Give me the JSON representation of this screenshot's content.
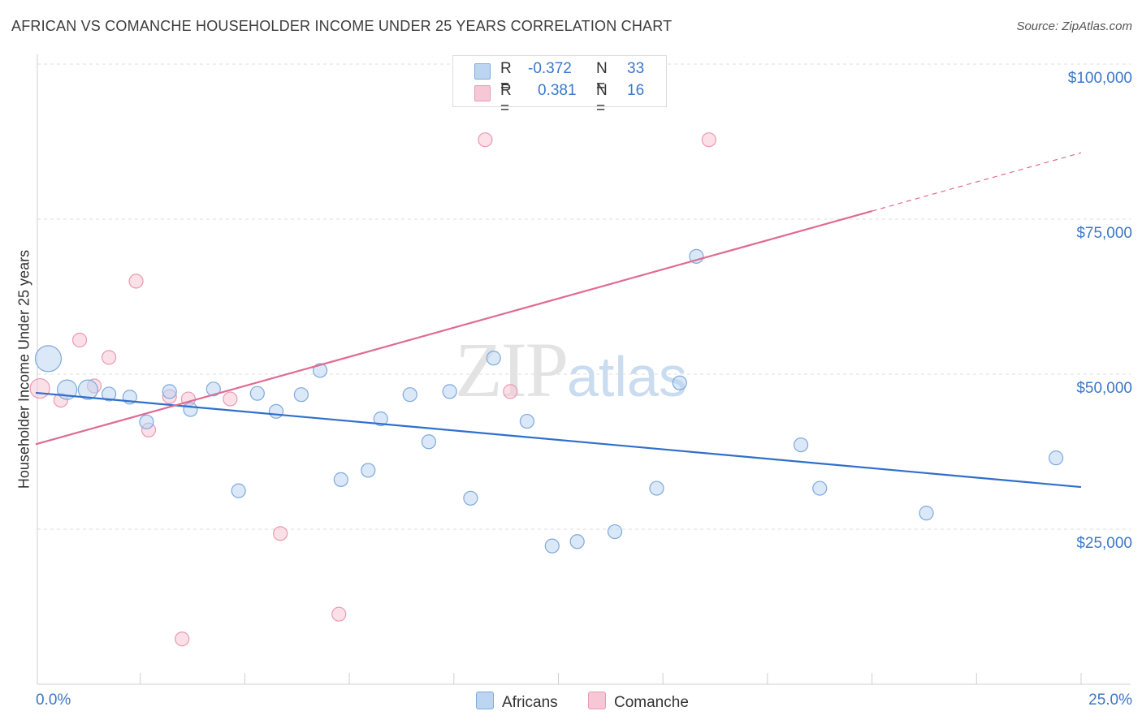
{
  "header": {
    "title": "AFRICAN VS COMANCHE HOUSEHOLDER INCOME UNDER 25 YEARS CORRELATION CHART",
    "source": "Source: ZipAtlas.com"
  },
  "watermark": {
    "zip": "ZIP",
    "atlas": "atlas"
  },
  "stats_box": {
    "africans": {
      "r_label": "R =",
      "r_value": "-0.372",
      "n_label": "N =",
      "n_value": "33"
    },
    "comanche": {
      "r_label": "R =",
      "r_value": "0.381",
      "n_label": "N =",
      "n_value": "16"
    }
  },
  "legend": {
    "africans": "Africans",
    "comanche": "Comanche"
  },
  "colors": {
    "africans_fill": "#bcd5f2",
    "africans_stroke": "#7fa9dc",
    "africans_line": "#2f6fcb",
    "comanche_fill": "#f7c7d6",
    "comanche_stroke": "#e99ab3",
    "comanche_line": "#e06a92",
    "tick_text": "#3b78c9",
    "grid": "#dddddd"
  },
  "chart_data": {
    "type": "scatter",
    "title": "AFRICAN VS COMANCHE HOUSEHOLDER INCOME UNDER 25 YEARS CORRELATION CHART",
    "xlabel": "",
    "ylabel": "Householder Income Under 25 years",
    "xlim": [
      0,
      25
    ],
    "ylim": [
      0,
      102000
    ],
    "x_tick_labels": [
      "0.0%",
      "25.0%"
    ],
    "y_ticks": [
      25000,
      50000,
      75000,
      100000
    ],
    "y_tick_labels": [
      "$25,000",
      "$50,000",
      "$75,000",
      "$100,000"
    ],
    "series": [
      {
        "name": "Africans",
        "r": -0.372,
        "n": 33,
        "trend": {
          "x0": 0,
          "y0": 47000,
          "x1": 25,
          "y1": 31800
        },
        "points": [
          {
            "x": 0.3,
            "y": 52500,
            "size": 3
          },
          {
            "x": 0.75,
            "y": 47500,
            "size": 2
          },
          {
            "x": 1.25,
            "y": 47500,
            "size": 2
          },
          {
            "x": 1.75,
            "y": 46800,
            "size": 1
          },
          {
            "x": 2.25,
            "y": 46300,
            "size": 1
          },
          {
            "x": 2.65,
            "y": 42300,
            "size": 1
          },
          {
            "x": 3.2,
            "y": 47200,
            "size": 1
          },
          {
            "x": 3.7,
            "y": 44300,
            "size": 1
          },
          {
            "x": 4.25,
            "y": 47600,
            "size": 1
          },
          {
            "x": 4.85,
            "y": 31200,
            "size": 1
          },
          {
            "x": 5.3,
            "y": 46900,
            "size": 1
          },
          {
            "x": 5.75,
            "y": 44000,
            "size": 1
          },
          {
            "x": 6.35,
            "y": 46700,
            "size": 1
          },
          {
            "x": 6.8,
            "y": 50600,
            "size": 1
          },
          {
            "x": 7.3,
            "y": 33000,
            "size": 1
          },
          {
            "x": 7.95,
            "y": 34500,
            "size": 1
          },
          {
            "x": 8.25,
            "y": 42800,
            "size": 1
          },
          {
            "x": 8.95,
            "y": 46700,
            "size": 1
          },
          {
            "x": 9.4,
            "y": 39100,
            "size": 1
          },
          {
            "x": 9.9,
            "y": 47200,
            "size": 1
          },
          {
            "x": 10.4,
            "y": 30000,
            "size": 1
          },
          {
            "x": 10.95,
            "y": 52600,
            "size": 1
          },
          {
            "x": 11.75,
            "y": 42400,
            "size": 1
          },
          {
            "x": 12.35,
            "y": 22300,
            "size": 1
          },
          {
            "x": 12.95,
            "y": 23000,
            "size": 1
          },
          {
            "x": 13.85,
            "y": 24600,
            "size": 1
          },
          {
            "x": 14.85,
            "y": 31600,
            "size": 1
          },
          {
            "x": 15.4,
            "y": 48600,
            "size": 1
          },
          {
            "x": 15.8,
            "y": 69000,
            "size": 1
          },
          {
            "x": 18.3,
            "y": 38600,
            "size": 1
          },
          {
            "x": 18.75,
            "y": 31600,
            "size": 1
          },
          {
            "x": 21.3,
            "y": 27600,
            "size": 1
          },
          {
            "x": 24.4,
            "y": 36500,
            "size": 1
          }
        ]
      },
      {
        "name": "Comanche",
        "r": 0.381,
        "n": 16,
        "trend": {
          "x0": 0,
          "y0": 38700,
          "x1": 20,
          "y1": 76300,
          "dashed_x1": 25,
          "dashed_y1": 85700
        },
        "points": [
          {
            "x": 0.1,
            "y": 47700,
            "size": 2
          },
          {
            "x": 0.6,
            "y": 45800,
            "size": 1
          },
          {
            "x": 1.05,
            "y": 55500,
            "size": 1
          },
          {
            "x": 1.4,
            "y": 48100,
            "size": 1
          },
          {
            "x": 1.75,
            "y": 52700,
            "size": 1
          },
          {
            "x": 2.4,
            "y": 65000,
            "size": 1
          },
          {
            "x": 2.7,
            "y": 41000,
            "size": 1
          },
          {
            "x": 3.2,
            "y": 46400,
            "size": 1
          },
          {
            "x": 3.5,
            "y": 7300,
            "size": 1
          },
          {
            "x": 3.65,
            "y": 46000,
            "size": 1
          },
          {
            "x": 4.65,
            "y": 46000,
            "size": 1
          },
          {
            "x": 5.85,
            "y": 24300,
            "size": 1
          },
          {
            "x": 7.25,
            "y": 11300,
            "size": 1
          },
          {
            "x": 10.75,
            "y": 87800,
            "size": 1
          },
          {
            "x": 11.35,
            "y": 47200,
            "size": 1
          },
          {
            "x": 16.1,
            "y": 87800,
            "size": 1
          }
        ]
      }
    ]
  }
}
